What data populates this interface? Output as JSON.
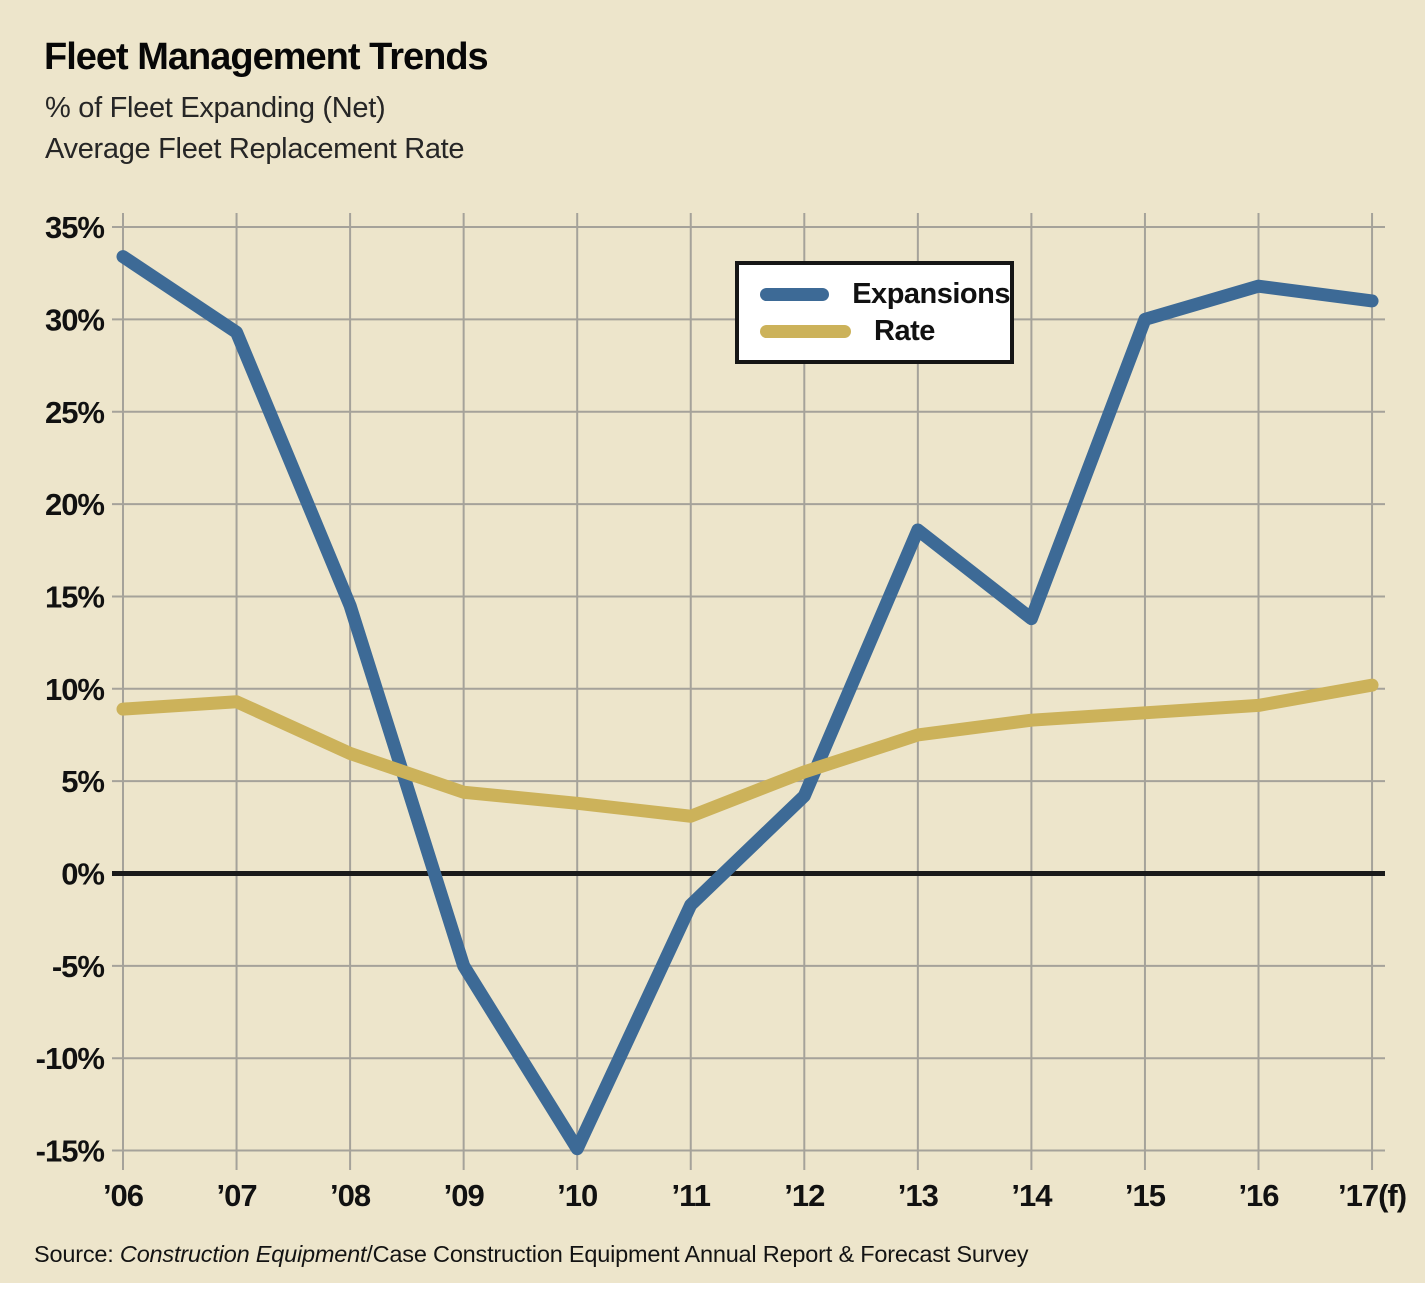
{
  "page": {
    "title": "Fleet Management Trends",
    "subtitle_line1": "% of Fleet Expanding (Net)",
    "subtitle_line2": "Average Fleet Replacement Rate",
    "source": {
      "prefix": "Source: ",
      "italic": "Construction Equipment",
      "rest": "/Case Construction Equipment Annual Report & Forecast Survey"
    }
  },
  "legend": {
    "items": [
      {
        "label": "Expansions",
        "color": "#3D6A96"
      },
      {
        "label": "Rate",
        "color": "#CCB25A"
      }
    ]
  },
  "chart_data": {
    "type": "line",
    "title": "Fleet Management Trends",
    "xlabel": "",
    "ylabel": "",
    "categories": [
      "’06",
      "’07",
      "’08",
      "’09",
      "’10",
      "’11",
      "’12",
      "’13",
      "’14",
      "’15",
      "’16",
      "’17(f)"
    ],
    "series": [
      {
        "name": "Expansions",
        "color": "#3D6A96",
        "values": [
          33.4,
          29.3,
          14.5,
          -5.0,
          -14.9,
          -1.7,
          4.2,
          18.6,
          13.8,
          30.0,
          31.8,
          31.0
        ]
      },
      {
        "name": "Rate",
        "color": "#CCB25A",
        "values": [
          8.9,
          9.3,
          6.5,
          4.4,
          3.8,
          3.1,
          5.5,
          7.5,
          8.3,
          8.7,
          9.1,
          10.2
        ]
      }
    ],
    "ylim": [
      -15,
      35
    ],
    "ytick_step": 5,
    "ytick_labels": [
      "35%",
      "30%",
      "25%",
      "20%",
      "15%",
      "10%",
      "5%",
      "0%",
      "-5%",
      "-10%",
      "-15%"
    ],
    "grid": true,
    "zero_line_value": 0,
    "legend_position": "top-center"
  },
  "colors": {
    "background": "#EDE5CB",
    "grid": "#A5A29A",
    "zero_line": "#1A1A1A",
    "tick_text": "#111111"
  }
}
